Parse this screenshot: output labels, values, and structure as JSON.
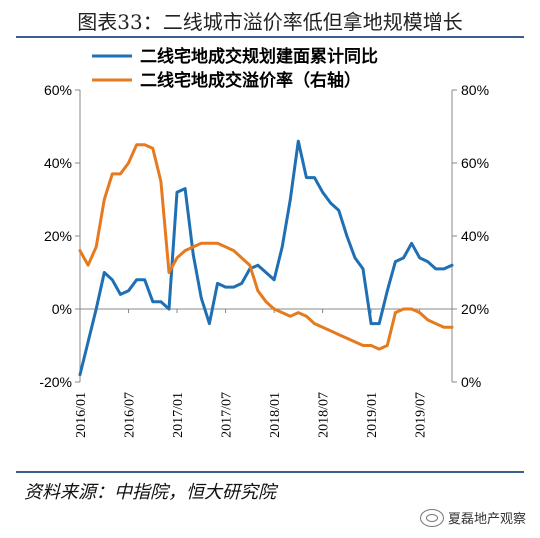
{
  "header": {
    "title": "图表33：二线城市溢价率低但拿地规模增长"
  },
  "footer": {
    "source": "资料来源：中指院，恒大研究院",
    "watermark": "夏磊地产观察"
  },
  "colors": {
    "series_blue": "#1f6fb4",
    "series_orange": "#e57a1f",
    "rule": "#3a5f8c"
  },
  "chart_data": {
    "type": "line",
    "x_tick_labels": [
      "2016/01",
      "2016/07",
      "2017/01",
      "2017/07",
      "2018/01",
      "2018/07",
      "2019/01",
      "2019/07"
    ],
    "y_left": {
      "ticks": [
        "-20%",
        "0%",
        "20%",
        "40%",
        "60%"
      ],
      "range": [
        -20,
        60
      ]
    },
    "y_right": {
      "ticks": [
        "0%",
        "20%",
        "40%",
        "60%",
        "80%"
      ],
      "range": [
        0,
        80
      ]
    },
    "series": [
      {
        "name": "二线宅地成交规划建面累计同比",
        "axis": "left",
        "x": [
          "2016-01",
          "2016-03",
          "2016-04",
          "2016-05",
          "2016-06",
          "2016-07",
          "2016-08",
          "2016-09",
          "2016-10",
          "2016-11",
          "2016-12",
          "2017-01",
          "2017-02",
          "2017-03",
          "2017-04",
          "2017-05",
          "2017-06",
          "2017-07",
          "2017-08",
          "2017-09",
          "2017-10",
          "2017-11",
          "2017-12",
          "2018-01",
          "2018-02",
          "2018-03",
          "2018-04",
          "2018-05",
          "2018-06",
          "2018-07",
          "2018-08",
          "2018-09",
          "2018-10",
          "2018-11",
          "2018-12",
          "2019-01",
          "2019-02",
          "2019-03",
          "2019-04",
          "2019-05",
          "2019-06",
          "2019-07",
          "2019-08",
          "2019-09",
          "2019-10",
          "2019-11"
        ],
        "values": [
          -18,
          0,
          10,
          8,
          4,
          5,
          8,
          8,
          2,
          2,
          0,
          32,
          33,
          15,
          3,
          -4,
          7,
          6,
          6,
          7,
          11,
          12,
          10,
          8,
          17,
          30,
          46,
          36,
          36,
          32,
          29,
          27,
          20,
          14,
          11,
          -4,
          -4,
          5,
          13,
          14,
          18,
          14,
          13,
          11,
          11,
          12
        ]
      },
      {
        "name": "二线宅地成交溢价率（右轴）",
        "axis": "right",
        "x": [
          "2016-01",
          "2016-02",
          "2016-03",
          "2016-04",
          "2016-05",
          "2016-06",
          "2016-07",
          "2016-08",
          "2016-09",
          "2016-10",
          "2016-11",
          "2016-12",
          "2017-01",
          "2017-02",
          "2017-03",
          "2017-04",
          "2017-05",
          "2017-06",
          "2017-07",
          "2017-08",
          "2017-09",
          "2017-10",
          "2017-11",
          "2017-12",
          "2018-01",
          "2018-02",
          "2018-03",
          "2018-04",
          "2018-05",
          "2018-06",
          "2018-07",
          "2018-08",
          "2018-09",
          "2018-10",
          "2018-11",
          "2018-12",
          "2019-01",
          "2019-02",
          "2019-03",
          "2019-04",
          "2019-05",
          "2019-06",
          "2019-07",
          "2019-08",
          "2019-09",
          "2019-10",
          "2019-11"
        ],
        "values": [
          36,
          32,
          37,
          50,
          57,
          57,
          60,
          65,
          65,
          64,
          55,
          30,
          34,
          36,
          37,
          38,
          38,
          38,
          37,
          36,
          34,
          32,
          25,
          22,
          20,
          19,
          18,
          19,
          18,
          16,
          15,
          14,
          13,
          12,
          11,
          10,
          10,
          9,
          10,
          19,
          20,
          20,
          19,
          17,
          16,
          15,
          15
        ]
      }
    ],
    "legend": "top-left"
  }
}
